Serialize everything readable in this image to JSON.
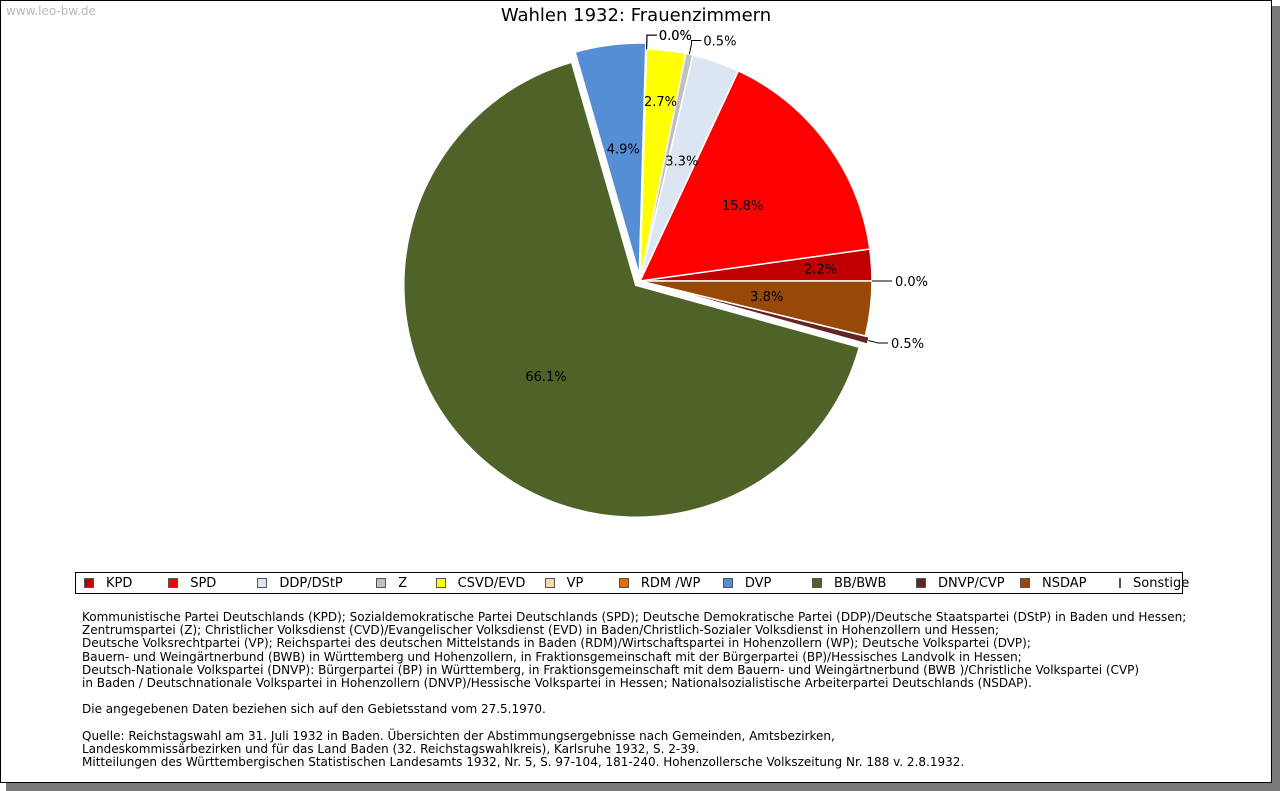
{
  "watermark": "www.leo-bw.de",
  "chart_data": {
    "type": "pie",
    "title": "Wahlen 1932: Frauenzimmern",
    "slices": [
      {
        "label": "KPD",
        "value": 2.2,
        "color": "#c00000",
        "value_label": "2.2%"
      },
      {
        "label": "SPD",
        "value": 15.8,
        "color": "#ff0000",
        "value_label": "15.8%"
      },
      {
        "label": "DDP/DStP",
        "value": 3.3,
        "color": "#dce6f2",
        "value_label": "3.3%"
      },
      {
        "label": "Z",
        "value": 0.5,
        "color": "#c0c0c0",
        "value_label": "0.5%"
      },
      {
        "label": "CSVD/EVD",
        "value": 2.7,
        "color": "#ffff00",
        "value_label": "2.7%"
      },
      {
        "label": "VP",
        "value": 0.0,
        "color": "#fcd5b5",
        "value_label": "0.0%"
      },
      {
        "label": "RDM /WP",
        "value": 0.0,
        "color": "#e46c0a",
        "value_label": "0.0%"
      },
      {
        "label": "DVP",
        "value": 4.9,
        "color": "#558ed5",
        "value_label": "4.9%"
      },
      {
        "label": "BB/BWB",
        "value": 66.1,
        "color": "#4f6228",
        "value_label": "66.1%"
      },
      {
        "label": "DNVP/CVP",
        "value": 0.5,
        "color": "#632523",
        "value_label": "0.5%"
      },
      {
        "label": "NSDAP",
        "value": 3.8,
        "color": "#984807",
        "value_label": "3.8%"
      },
      {
        "label": "Sonstige",
        "value": 0.0,
        "color": "#ffc000",
        "value_label": "0.0%"
      }
    ],
    "legend_position": "bottom"
  },
  "footnotes": [
    "Kommunistische Partei Deutschlands (KPD); Sozialdemokratische Partei Deutschlands (SPD); Deutsche Demokratische Partei (DDP)/Deutsche Staatspartei (DStP) in Baden und Hessen;",
    "Zentrumspartei (Z); Christlicher Volksdienst (CVD)/Evangelischer Volksdienst (EVD) in Baden/Christlich-Sozialer Volksdienst in Hohenzollern und Hessen;",
    "Deutsche Volksrechtpartei (VP); Reichspartei des deutschen Mittelstands in Baden (RDM)/Wirtschaftspartei in Hohenzollern (WP); Deutsche Volkspartei (DVP);",
    "Bauern- und Weingärtnerbund (BWB) in Württemberg und Hohenzollern, in Fraktionsgemeinschaft mit der Bürgerpartei (BP)/Hessisches Landvolk in Hessen;",
    "Deutsch-Nationale Volkspartei (DNVP): Bürgerpartei (BP) in Württemberg, in Fraktionsgemeinschaft mit dem Bauern- und Weingärtnerbund (BWB )/Christliche Volkspartei (CVP)",
    "in Baden / Deutschnationale Volkspartei in Hohenzollern (DNVP)/Hessische Volkspartei in Hessen; Nationalsozialistische Arbeiterpartei Deutschlands (NSDAP).",
    "",
    "Die angegebenen Daten beziehen sich auf den Gebietsstand vom 27.5.1970.",
    "",
    "Quelle: Reichstagswahl am 31. Juli 1932 in Baden. Übersichten der Abstimmungsergebnisse nach Gemeinden, Amtsbezirken,",
    "Landeskommissärbezirken und für das Land Baden (32. Reichstagswahlkreis), Karlsruhe 1932, S. 2-39.",
    "Mitteilungen des Württembergischen Statistischen Landesamts 1932, Nr. 5, S. 97-104, 181-240. Hohenzollersche Volkszeitung Nr. 188 v. 2.8.1932."
  ]
}
